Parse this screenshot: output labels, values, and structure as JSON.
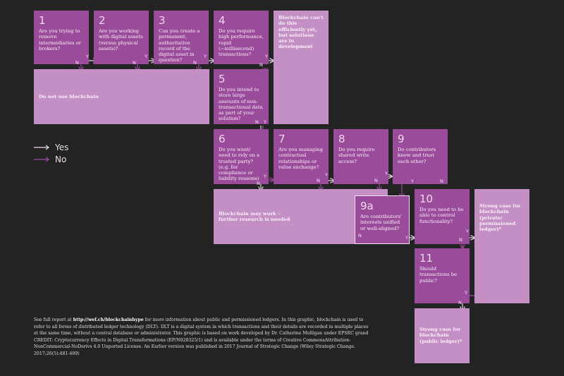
{
  "questions": {
    "q1": {
      "number": "1",
      "text": "Are you trying to remove intermediaries or brokers?"
    },
    "q2": {
      "number": "2",
      "text": "Are you working with digital assets (versus physical assets)?"
    },
    "q3": {
      "number": "3",
      "text": "Can you create a permanent, authoritative record of the digital asset in question?"
    },
    "q4": {
      "number": "4",
      "text": "Do you require high performance, rapid (~millisecond) transactions?"
    },
    "q5": {
      "number": "5",
      "text": "Do you intend to store large amounts of non-transactional data as part of your solution?"
    },
    "q6": {
      "number": "6",
      "text": "Do you want/ need to rely on a trusted party? (e.g. for compliance or liability reasons)"
    },
    "q7": {
      "number": "7",
      "text": "Are you managing contractual relationships or value exchange?"
    },
    "q8": {
      "number": "8",
      "text": "Do you require shared write access?"
    },
    "q9": {
      "number": "9",
      "text": "Do contributors know and trust each other?"
    },
    "q9a": {
      "number": "9a",
      "text": "Are contributors' interests unified or well-aligned?"
    },
    "q10": {
      "number": "10",
      "text": "Do you need to be able to control functionality?"
    },
    "q11": {
      "number": "11",
      "text": "Should transactions be public?"
    }
  },
  "outcomes": {
    "not_yet": "Blockchain can't do this efficiently yet, but solutions are in development",
    "do_not_use": "Do not use blockchain",
    "may_work": "Blockchain may work – further research is needed",
    "private": "Strong case for blockchain (private/ permissioned ledger)*",
    "public": "Strong case for blockchain (public ledger)*"
  },
  "labels": {
    "yes": "Y",
    "no": "N"
  },
  "legend": {
    "yes": "Yes",
    "no": "No"
  },
  "colors": {
    "background": "#232323",
    "question": "#9a4c9b",
    "outcome": "#c48fc4",
    "yes_arrow": "#e9d7e9",
    "no_arrow": "#a04aa4"
  },
  "footnote": {
    "pre": "See full report at ",
    "link": "http://wef.ch/blockchainhype",
    "post": " for more information about public and permissioned ledgers. In this graphic, blockchain is used to refer to all forms of distributed ledger technology (DLT). DLT is a digital system in which transactions and their details are recorded in multiple places at the same time, without a central database or administrator. This graphic is based on work developed by Dr. Catherine Mulligan under EPSRC grand CREDIT: Cryptocurrency Effects in Digital Transformations (EP/N028325/1) and is available under the terms of Creative CommonsAttribution-NonCommercial-NoDerivs 4.0 Unported License. An Earlier version was published in 2017 Journal of Strategic Change (Wiley Strategic Change. 2017;26(5):481-489)"
  }
}
